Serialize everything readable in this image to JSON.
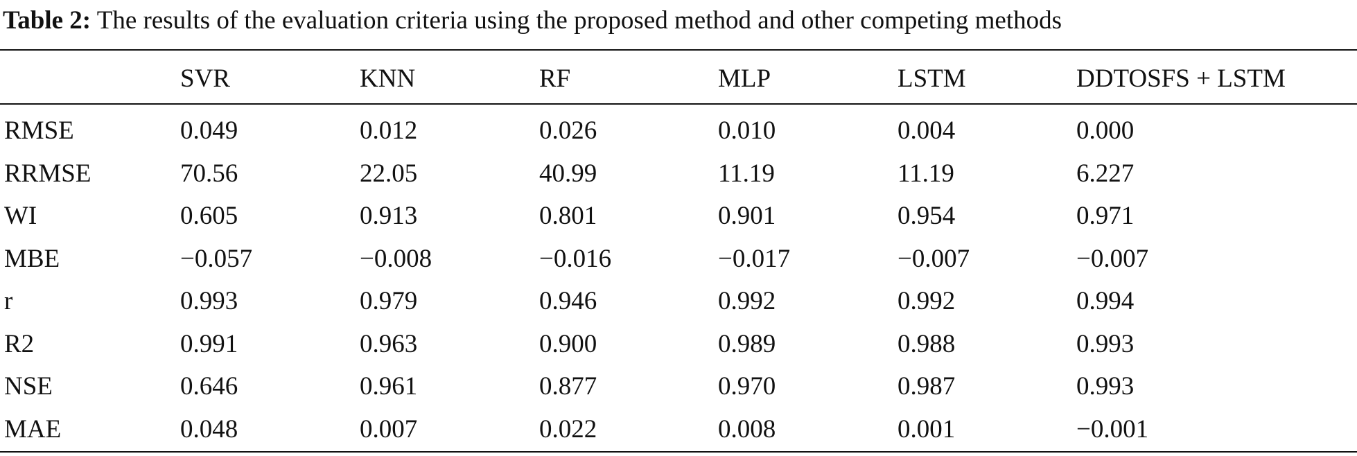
{
  "caption": {
    "label": "Table 2:",
    "text": " The results of the evaluation criteria using the proposed method and other competing methods"
  },
  "table": {
    "columns": [
      "",
      "SVR",
      "KNN",
      "RF",
      "MLP",
      "LSTM",
      "DDTOSFS + LSTM"
    ],
    "rows": [
      {
        "metric": "RMSE",
        "values": [
          "0.049",
          "0.012",
          "0.026",
          "0.010",
          "0.004",
          "0.000"
        ]
      },
      {
        "metric": "RRMSE",
        "values": [
          "70.56",
          "22.05",
          "40.99",
          "11.19",
          "11.19",
          "6.227"
        ]
      },
      {
        "metric": "WI",
        "values": [
          "0.605",
          "0.913",
          "0.801",
          "0.901",
          "0.954",
          "0.971"
        ]
      },
      {
        "metric": "MBE",
        "values": [
          "−0.057",
          "−0.008",
          "−0.016",
          "−0.017",
          "−0.007",
          "−0.007"
        ]
      },
      {
        "metric": "r",
        "values": [
          "0.993",
          "0.979",
          "0.946",
          "0.992",
          "0.992",
          "0.994"
        ]
      },
      {
        "metric": "R2",
        "values": [
          "0.991",
          "0.963",
          "0.900",
          "0.989",
          "0.988",
          "0.993"
        ]
      },
      {
        "metric": "NSE",
        "values": [
          "0.646",
          "0.961",
          "0.877",
          "0.970",
          "0.987",
          "0.993"
        ]
      },
      {
        "metric": "MAE",
        "values": [
          "0.048",
          "0.007",
          "0.022",
          "0.008",
          "0.001",
          "−0.001"
        ]
      }
    ]
  }
}
